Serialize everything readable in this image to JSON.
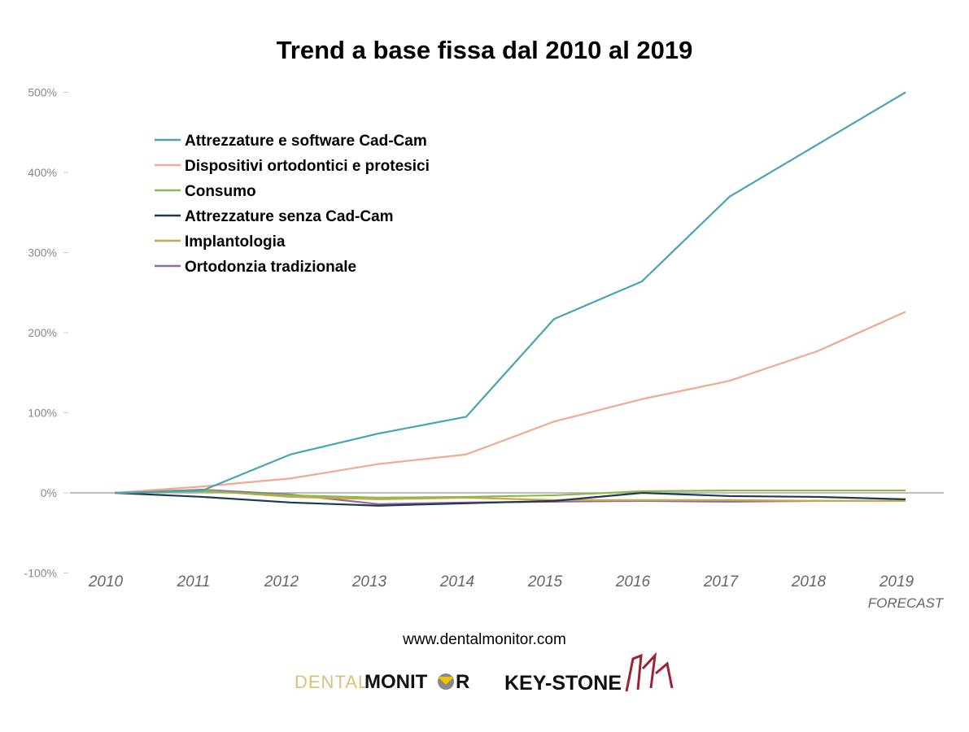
{
  "chart_data": {
    "type": "line",
    "title": "Trend a base fissa dal 2010 al 2019",
    "xlabel": "",
    "ylabel": "",
    "x": [
      "2010",
      "2011",
      "2012",
      "2013",
      "2014",
      "2015",
      "2016",
      "2017",
      "2018",
      "2019"
    ],
    "x_sublabel": {
      "2019": "FORECAST"
    },
    "ylim": [
      -100,
      500
    ],
    "yticks": [
      -100,
      0,
      100,
      200,
      300,
      400,
      500
    ],
    "ytick_labels": [
      "-100%",
      "0%",
      "100%",
      "200%",
      "300%",
      "400%",
      "500%"
    ],
    "legend_position": "top-left",
    "series": [
      {
        "name": "Attrezzature e software Cad-Cam",
        "color": "#4aa3b5",
        "values": [
          0,
          3,
          48,
          74,
          95,
          217,
          264,
          370,
          435,
          500
        ]
      },
      {
        "name": "Dispositivi ortodontici e protesici",
        "color": "#f0aa90",
        "values": [
          0,
          8,
          18,
          36,
          48,
          89,
          117,
          140,
          177,
          226
        ]
      },
      {
        "name": "Consumo",
        "color": "#8db84a",
        "values": [
          0,
          2,
          -3,
          -6,
          -5,
          -3,
          2,
          3,
          3,
          3
        ]
      },
      {
        "name": "Attrezzature senza Cad-Cam",
        "color": "#1f3a4f",
        "values": [
          0,
          -5,
          -12,
          -16,
          -13,
          -10,
          0,
          -4,
          -5,
          -8
        ]
      },
      {
        "name": "Implantologia",
        "color": "#c9a84a",
        "values": [
          0,
          3,
          -5,
          -8,
          -6,
          -9,
          -9,
          -9,
          -10,
          -10
        ]
      },
      {
        "name": "Ortodonzia tradizionale",
        "color": "#8e6aa4",
        "values": [
          0,
          4,
          -2,
          -14,
          -12,
          -11,
          -10,
          -11,
          -10,
          -10
        ]
      }
    ]
  },
  "footer": {
    "url": "www.dentalmonitor.com",
    "logo_dental_monitor": "DENTAL MONITOR",
    "logo_keystone": "KEY-STONE"
  }
}
